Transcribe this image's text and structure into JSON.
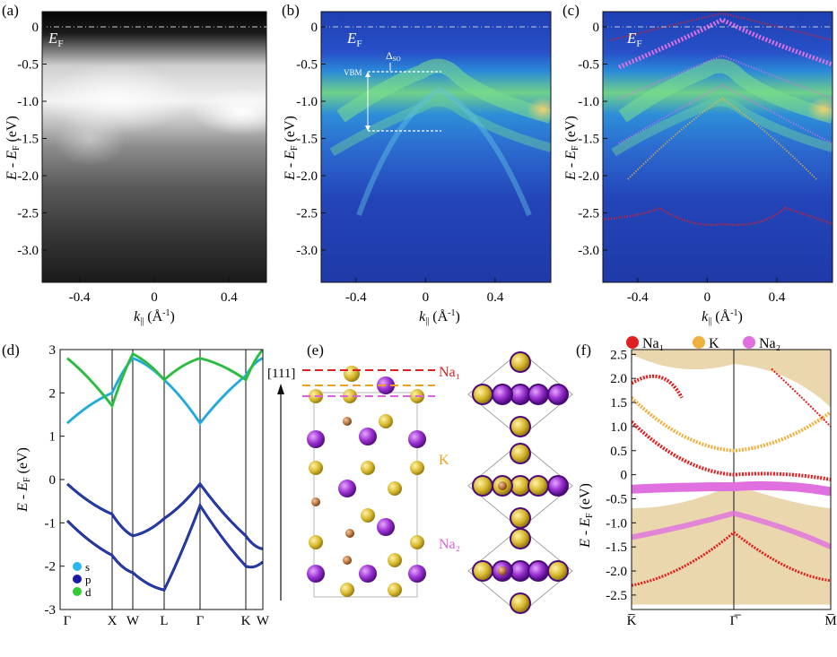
{
  "panel_labels": [
    "(a)",
    "(b)",
    "(c)",
    "(d)",
    "(e)",
    "(f)"
  ],
  "arpes": {
    "ef_label": "E",
    "ef_sub": "F",
    "ylabel_main": "E - E",
    "ylabel_sub": "F",
    "ylabel_unit": " (eV)",
    "xlabel_main": "k",
    "xlabel_sub": "||",
    "xlabel_unit": " (Å",
    "xlabel_sup": "-1",
    "xlabel_close": ")",
    "y_ticks": [
      "0",
      "-0.5",
      "-1.0",
      "-1.5",
      "-2.0",
      "-2.5",
      "-3.0"
    ],
    "x_ticks": [
      "-0.4",
      "0",
      "0.4"
    ],
    "vbm_label": "VBM",
    "dso_label": "Δ",
    "dso_sub": "SO"
  },
  "panel_d": {
    "ylabel_main": "E - E",
    "ylabel_sub": "F",
    "ylabel_unit": " (eV)",
    "y_ticks": [
      "3",
      "2",
      "1",
      "0",
      "-1",
      "-2",
      "-3"
    ],
    "kpoints": [
      "Γ",
      "X",
      "W",
      "L",
      "Γ",
      "K",
      "W"
    ],
    "legend": [
      {
        "label": "s",
        "color": "#29b6f6"
      },
      {
        "label": "p",
        "color": "#1a1aa8"
      },
      {
        "label": "d",
        "color": "#33cc33"
      }
    ]
  },
  "panel_e": {
    "direction": "[111]",
    "layers": [
      {
        "label": "Na₁",
        "color": "#e02020"
      },
      {
        "label": "K",
        "color": "#f0a020"
      },
      {
        "label": "Na₂",
        "color": "#e060e0"
      }
    ]
  },
  "panel_f": {
    "ylabel_main": "E - E",
    "ylabel_sub": "F",
    "ylabel_unit": " (eV)",
    "y_ticks": [
      "2.5",
      "2.0",
      "1.5",
      "1.0",
      "0.5",
      "0",
      "-0.5",
      "-1.0",
      "-1.5",
      "-2.0",
      "-2.5"
    ],
    "kpoints": [
      "K̅",
      "Γ̅",
      "M̅"
    ],
    "legend": [
      {
        "label": "Na₁",
        "color": "#e02020"
      },
      {
        "label": "K",
        "color": "#f0b040"
      },
      {
        "label": "Na₂",
        "color": "#e070e0"
      }
    ]
  },
  "chart_data": [
    {
      "type": "heatmap",
      "panel": "(a)",
      "xlim": [
        -0.6,
        0.6
      ],
      "ylim": [
        -3.5,
        0.1
      ]
    },
    {
      "type": "heatmap",
      "panel": "(b)",
      "xlim": [
        -0.6,
        0.72
      ],
      "ylim": [
        -3.5,
        0.1
      ],
      "vbm": -0.6,
      "lower_level": -1.4
    },
    {
      "type": "heatmap",
      "panel": "(c)",
      "xlim": [
        -0.6,
        0.72
      ],
      "ylim": [
        -3.5,
        0.1
      ]
    },
    {
      "type": "line",
      "panel": "(d)",
      "ylim": [
        -3,
        3
      ],
      "categories": [
        "Γ",
        "X",
        "W",
        "L",
        "Γ",
        "K",
        "W"
      ],
      "series": [
        {
          "name": "p",
          "values": [
            -0.1,
            -0.8,
            -1.3,
            -0.9,
            -0.1,
            -1.3,
            -1.6
          ]
        },
        {
          "name": "p",
          "values": [
            -0.95,
            -1.75,
            -2.15,
            -2.55,
            -0.6,
            -2.0,
            -1.9
          ]
        },
        {
          "name": "s",
          "values": [
            1.3,
            2.0,
            2.8,
            2.3,
            1.3,
            2.4,
            2.8
          ]
        },
        {
          "name": "d",
          "values": [
            2.8,
            1.7,
            2.9,
            2.3,
            2.8,
            2.3,
            3.0
          ]
        }
      ]
    },
    {
      "type": "line",
      "panel": "(f)",
      "ylim": [
        -2.8,
        2.6
      ],
      "categories": [
        "K̅",
        "Γ̅",
        "M̅"
      ],
      "series": [
        {
          "name": "Na₂",
          "values": [
            -0.3,
            -0.25,
            -0.35
          ]
        },
        {
          "name": "K",
          "values": [
            1.6,
            0.5,
            1.3
          ]
        },
        {
          "name": "Na₁",
          "values": [
            1.1,
            0.0,
            -0.1
          ]
        }
      ]
    }
  ]
}
